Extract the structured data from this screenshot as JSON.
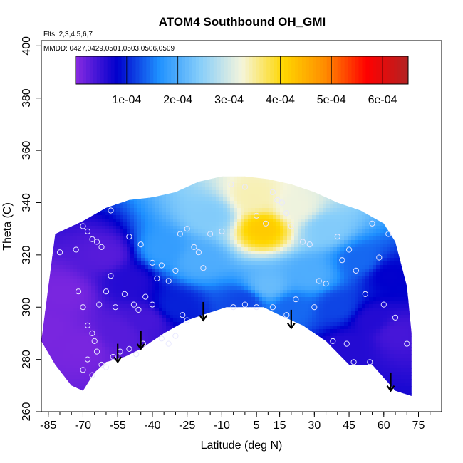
{
  "chart_data": {
    "type": "heatmap",
    "title": "ATOM4 Southbound OH_GMI",
    "subtitle_flights": "Flts: 2,3,4,5,6,7",
    "subtitle_dates": "MMDD: 0427,0429,0501,0503,0506,0509",
    "xlabel": "Latitude (deg N)",
    "ylabel": "Theta (C)",
    "xlim": [
      -88,
      85
    ],
    "ylim": [
      260,
      402
    ],
    "x_ticks": [
      -85,
      -70,
      -55,
      -40,
      -25,
      -10,
      5,
      15,
      30,
      45,
      60,
      75
    ],
    "y_ticks": [
      260,
      280,
      300,
      320,
      340,
      360,
      380,
      400
    ],
    "colorbar": {
      "min": 0,
      "max": 0.00065,
      "tick_values": [
        0.0001,
        0.0002,
        0.0003,
        0.0004,
        0.0005,
        0.0006
      ],
      "tick_labels": [
        "1e-04",
        "2e-04",
        "3e-04",
        "4e-04",
        "5e-04",
        "6e-04"
      ],
      "colors": [
        "#8a2be2",
        "#0000cd",
        "#1e90ff",
        "#87cefa",
        "#f5f5dc",
        "#ffd700",
        "#ff8c00",
        "#ff0000",
        "#b22222"
      ]
    },
    "top_boundary": [
      [
        -82,
        328
      ],
      [
        -70,
        333
      ],
      [
        -60,
        338
      ],
      [
        -50,
        341
      ],
      [
        -40,
        342
      ],
      [
        -30,
        344
      ],
      [
        -20,
        348
      ],
      [
        -10,
        350
      ],
      [
        0,
        350
      ],
      [
        10,
        349
      ],
      [
        20,
        347
      ],
      [
        30,
        344
      ],
      [
        40,
        340
      ],
      [
        50,
        337
      ],
      [
        60,
        332
      ],
      [
        65,
        325
      ],
      [
        70,
        308
      ],
      [
        72,
        290
      ],
      [
        72,
        266
      ]
    ],
    "bottom_boundary": [
      [
        -88,
        287
      ],
      [
        -82,
        278
      ],
      [
        -75,
        270
      ],
      [
        -70,
        268
      ],
      [
        -65,
        275
      ],
      [
        -60,
        279
      ],
      [
        -52,
        281
      ],
      [
        -45,
        284
      ],
      [
        -35,
        290
      ],
      [
        -25,
        295
      ],
      [
        -15,
        298
      ],
      [
        -8,
        300
      ],
      [
        0,
        300
      ],
      [
        8,
        300
      ],
      [
        15,
        297
      ],
      [
        25,
        293
      ],
      [
        35,
        287
      ],
      [
        45,
        278
      ],
      [
        55,
        278
      ],
      [
        65,
        268
      ],
      [
        72,
        266
      ]
    ],
    "field_features": [
      {
        "x": 8,
        "y": 330,
        "value": 0.00042
      },
      {
        "x": 3,
        "y": 342,
        "value": 0.00034
      },
      {
        "x": 22,
        "y": 338,
        "value": 0.00032
      },
      {
        "x": -15,
        "y": 335,
        "value": 0.00024
      },
      {
        "x": 35,
        "y": 330,
        "value": 0.00024
      },
      {
        "x": 28,
        "y": 312,
        "value": 0.0002
      },
      {
        "x": 10,
        "y": 308,
        "value": 0.00022
      },
      {
        "x": -20,
        "y": 318,
        "value": 0.0002
      },
      {
        "x": -35,
        "y": 322,
        "value": 0.00018
      },
      {
        "x": 50,
        "y": 318,
        "value": 0.00014
      },
      {
        "x": 62,
        "y": 312,
        "value": 8e-05
      },
      {
        "x": 65,
        "y": 290,
        "value": 4e-05
      },
      {
        "x": 55,
        "y": 295,
        "value": 6e-05
      },
      {
        "x": -50,
        "y": 310,
        "value": 6e-05
      },
      {
        "x": -42,
        "y": 295,
        "value": 4e-05
      },
      {
        "x": -30,
        "y": 300,
        "value": 0.0001
      },
      {
        "x": -60,
        "y": 320,
        "value": 3e-05
      },
      {
        "x": -78,
        "y": 305,
        "value": 1e-05
      },
      {
        "x": -70,
        "y": 285,
        "value": 1e-05
      },
      {
        "x": -85,
        "y": 292,
        "value": 1e-05
      },
      {
        "x": -55,
        "y": 290,
        "value": 3e-05
      },
      {
        "x": 40,
        "y": 300,
        "value": 0.00012
      },
      {
        "x": 20,
        "y": 300,
        "value": 0.00014
      },
      {
        "x": 0,
        "y": 302,
        "value": 0.00012
      },
      {
        "x": 45,
        "y": 285,
        "value": 6e-05
      }
    ],
    "sample_points": [
      [
        -80,
        321
      ],
      [
        -73,
        322
      ],
      [
        -70,
        331
      ],
      [
        -68,
        329
      ],
      [
        -66,
        326
      ],
      [
        -64,
        325
      ],
      [
        -62,
        323
      ],
      [
        -58,
        337
      ],
      [
        -50,
        327
      ],
      [
        -45,
        324
      ],
      [
        -40,
        317
      ],
      [
        -38,
        311
      ],
      [
        -36,
        316
      ],
      [
        -33,
        310
      ],
      [
        -30,
        314
      ],
      [
        -28,
        328
      ],
      [
        -25,
        330
      ],
      [
        -22,
        323
      ],
      [
        -20,
        321
      ],
      [
        -18,
        315
      ],
      [
        -15,
        328
      ],
      [
        -10,
        329
      ],
      [
        -6,
        347
      ],
      [
        0,
        346
      ],
      [
        5,
        335
      ],
      [
        9,
        332
      ],
      [
        12,
        344
      ],
      [
        14,
        341
      ],
      [
        16,
        340
      ],
      [
        18,
        336
      ],
      [
        20,
        331
      ],
      [
        25,
        325
      ],
      [
        28,
        324
      ],
      [
        32,
        310
      ],
      [
        35,
        309
      ],
      [
        40,
        327
      ],
      [
        42,
        318
      ],
      [
        45,
        322
      ],
      [
        48,
        314
      ],
      [
        52,
        305
      ],
      [
        55,
        332
      ],
      [
        58,
        319
      ],
      [
        62,
        328
      ],
      [
        -72,
        306
      ],
      [
        -70,
        300
      ],
      [
        -68,
        293
      ],
      [
        -66,
        290
      ],
      [
        -65,
        287
      ],
      [
        -63,
        301
      ],
      [
        -60,
        306
      ],
      [
        -58,
        312
      ],
      [
        -56,
        300
      ],
      [
        -52,
        305
      ],
      [
        -48,
        301
      ],
      [
        -46,
        299
      ],
      [
        -43,
        304
      ],
      [
        -40,
        301
      ],
      [
        -36,
        288
      ],
      [
        -33,
        286
      ],
      [
        -30,
        289
      ],
      [
        -27,
        297
      ],
      [
        -25,
        295
      ],
      [
        -5,
        300
      ],
      [
        0,
        301
      ],
      [
        5,
        300
      ],
      [
        12,
        300
      ],
      [
        18,
        297
      ],
      [
        22,
        303
      ],
      [
        30,
        300
      ],
      [
        38,
        287
      ],
      [
        44,
        286
      ],
      [
        47,
        279
      ],
      [
        54,
        279
      ],
      [
        60,
        301
      ],
      [
        65,
        296
      ],
      [
        70,
        286
      ],
      [
        -70,
        276
      ],
      [
        -68,
        280
      ],
      [
        -66,
        274
      ],
      [
        -64,
        283
      ],
      [
        -62,
        278
      ],
      [
        -60,
        277
      ],
      [
        -57,
        281
      ],
      [
        -54,
        283
      ],
      [
        -50,
        284
      ],
      [
        -47,
        282
      ],
      [
        -44,
        286
      ]
    ],
    "arrows": [
      {
        "x": -55,
        "y_top": 286,
        "y_bottom": 279
      },
      {
        "x": -45,
        "y_top": 291,
        "y_bottom": 284
      },
      {
        "x": -18,
        "y_top": 302,
        "y_bottom": 295
      },
      {
        "x": 20,
        "y_top": 299,
        "y_bottom": 292
      },
      {
        "x": 63,
        "y_top": 275,
        "y_bottom": 268
      }
    ]
  }
}
